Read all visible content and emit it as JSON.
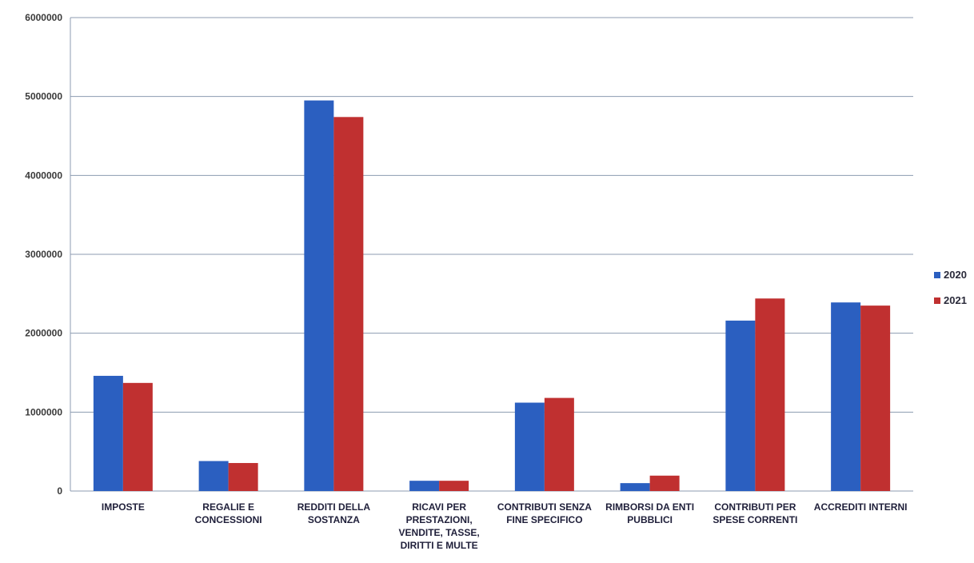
{
  "chart_data": {
    "type": "bar",
    "categories": [
      "IMPOSTE",
      "REGALIE E CONCESSIONI",
      "REDDITI DELLA SOSTANZA",
      "RICAVI PER PRESTAZIONI, VENDITE, TASSE, DIRITTI E MULTE",
      "CONTRIBUTI SENZA FINE SPECIFICO",
      "RIMBORSI DA ENTI PUBBLICI",
      "CONTRIBUTI PER SPESE CORRENTI",
      "ACCREDITI INTERNI"
    ],
    "series": [
      {
        "name": "2020",
        "color": "#2b5fc0",
        "values": [
          1460000,
          380000,
          4950000,
          130000,
          1120000,
          100000,
          2160000,
          2390000
        ]
      },
      {
        "name": "2021",
        "color": "#c03030",
        "values": [
          1370000,
          355000,
          4740000,
          130000,
          1180000,
          195000,
          2440000,
          2350000
        ]
      }
    ],
    "yticks": [
      "0",
      "1000000",
      "2000000",
      "3000000",
      "4000000",
      "5000000",
      "6000000"
    ],
    "ylim": [
      0,
      6000000
    ],
    "grid": true,
    "legend_position": "right"
  }
}
